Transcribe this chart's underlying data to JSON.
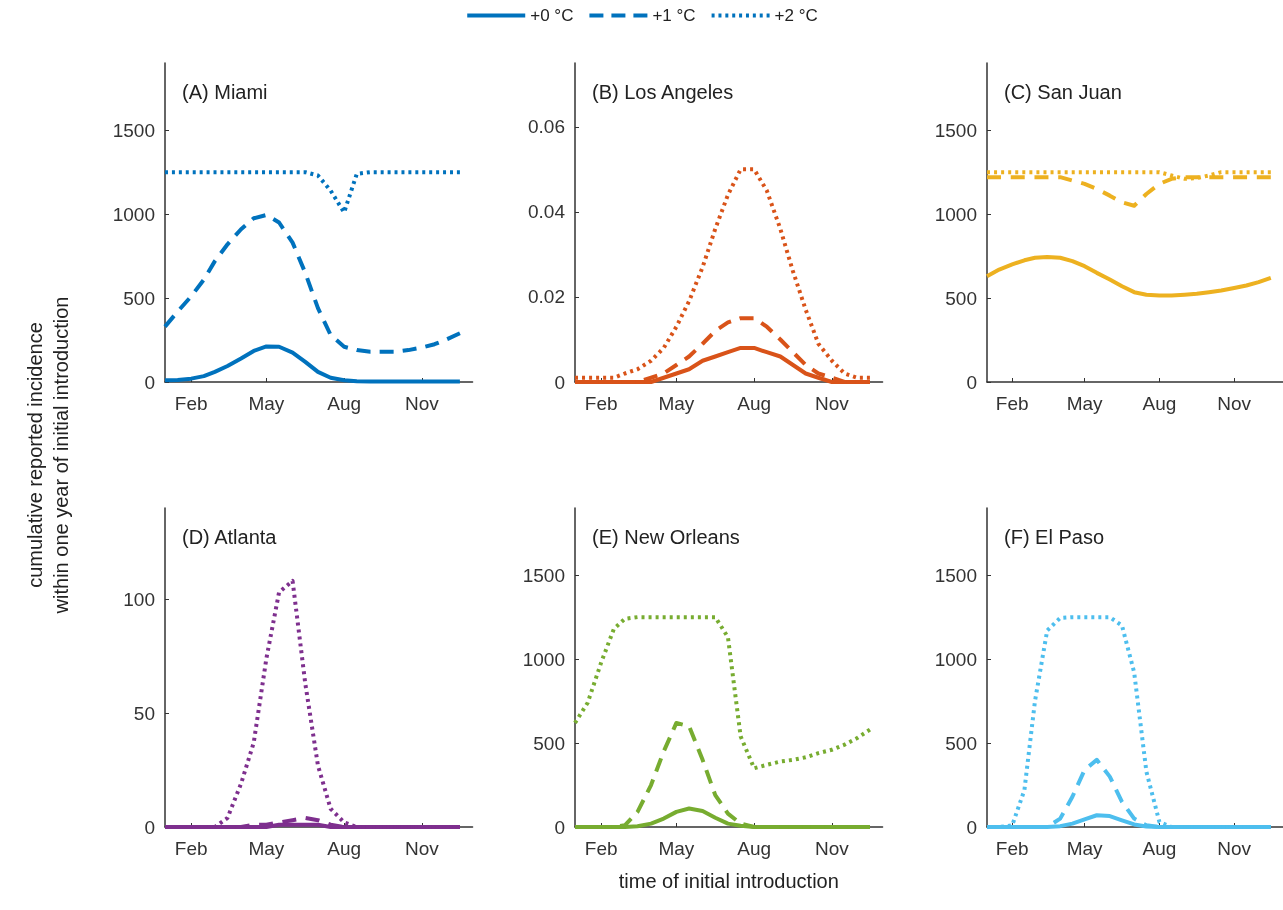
{
  "chart_data": [
    {
      "type": "line",
      "title": "(A) Miami",
      "ylabel": "cumulative reported incidence\nwithin one year of initial introduction",
      "legend": "top",
      "marker": "none",
      "grid": false,
      "x": [
        "--01-01",
        "--01-16",
        "--02-01",
        "--02-16",
        "--03-01",
        "--03-16",
        "--04-01",
        "--04-16",
        "--05-01",
        "--05-16",
        "--06-01",
        "--06-16",
        "--07-01",
        "--07-16",
        "--08-01",
        "--08-16",
        "--09-01",
        "--09-16",
        "--10-01",
        "--10-16",
        "--11-01",
        "--11-16",
        "--12-01",
        "--12-16"
      ],
      "xlim": [
        "--01-01",
        "--12-31"
      ],
      "xticks": [
        {
          "value": "--02-01",
          "label": "Feb"
        },
        {
          "value": "--05-01",
          "label": "May"
        },
        {
          "value": "--08-01",
          "label": "Aug"
        },
        {
          "value": "--11-01",
          "label": "Nov"
        }
      ],
      "ylim": [
        0,
        1900
      ],
      "yticks": [
        0,
        500,
        1000,
        1500
      ],
      "series": [
        {
          "name": "+0 °C",
          "color": "#0072bd",
          "line_style": "solid",
          "values": [
            10,
            12,
            20,
            35,
            60,
            95,
            140,
            185,
            212,
            210,
            175,
            120,
            60,
            25,
            10,
            5,
            3,
            3,
            3,
            3,
            3,
            3,
            3,
            3
          ]
        },
        {
          "name": "+1 °C",
          "color": "#0072bd",
          "line_style": "dashed",
          "values": [
            330,
            420,
            510,
            610,
            720,
            820,
            910,
            975,
            995,
            950,
            830,
            650,
            440,
            280,
            210,
            190,
            180,
            180,
            180,
            190,
            205,
            225,
            255,
            290
          ]
        },
        {
          "name": "+2 °C",
          "color": "#0072bd",
          "line_style": "dotted",
          "values": [
            1250,
            1250,
            1250,
            1250,
            1250,
            1250,
            1250,
            1250,
            1250,
            1250,
            1250,
            1250,
            1230,
            1140,
            1010,
            1240,
            1250,
            1250,
            1250,
            1250,
            1250,
            1250,
            1250,
            1250
          ]
        }
      ]
    },
    {
      "type": "line",
      "title": "(B) Los Angeles",
      "marker": "none",
      "grid": false,
      "x": [
        "--01-01",
        "--01-16",
        "--02-01",
        "--02-16",
        "--03-01",
        "--03-16",
        "--04-01",
        "--04-16",
        "--05-01",
        "--05-16",
        "--06-01",
        "--06-16",
        "--07-01",
        "--07-16",
        "--08-01",
        "--08-16",
        "--09-01",
        "--09-16",
        "--10-01",
        "--10-16",
        "--11-01",
        "--11-16",
        "--12-01",
        "--12-16"
      ],
      "xlim": [
        "--01-01",
        "--12-31"
      ],
      "xticks": [
        {
          "value": "--02-01",
          "label": "Feb"
        },
        {
          "value": "--05-01",
          "label": "May"
        },
        {
          "value": "--08-01",
          "label": "Aug"
        },
        {
          "value": "--11-01",
          "label": "Nov"
        }
      ],
      "ylim": [
        0,
        0.075
      ],
      "yticks": [
        0,
        0.02,
        0.04,
        0.06
      ],
      "series": [
        {
          "color": "#d95319",
          "line_style": "solid",
          "values": [
            0,
            0,
            0,
            0,
            0,
            0,
            0,
            0.001,
            0.002,
            0.003,
            0.005,
            0.006,
            0.007,
            0.008,
            0.008,
            0.007,
            0.006,
            0.004,
            0.002,
            0.001,
            0,
            0,
            0,
            0
          ]
        },
        {
          "color": "#d95319",
          "line_style": "dashed",
          "values": [
            0,
            0,
            0,
            0,
            0,
            0,
            0.001,
            0.002,
            0.004,
            0.006,
            0.009,
            0.012,
            0.014,
            0.015,
            0.015,
            0.013,
            0.01,
            0.007,
            0.004,
            0.002,
            0.001,
            0,
            0,
            0
          ]
        },
        {
          "color": "#d95319",
          "line_style": "dotted",
          "values": [
            0.001,
            0.001,
            0.001,
            0.001,
            0.002,
            0.003,
            0.005,
            0.008,
            0.013,
            0.019,
            0.027,
            0.036,
            0.044,
            0.05,
            0.05,
            0.045,
            0.036,
            0.026,
            0.017,
            0.009,
            0.005,
            0.002,
            0.001,
            0.001
          ]
        }
      ]
    },
    {
      "type": "line",
      "title": "(C) San Juan",
      "marker": "none",
      "grid": false,
      "x": [
        "--01-01",
        "--01-16",
        "--02-01",
        "--02-16",
        "--03-01",
        "--03-16",
        "--04-01",
        "--04-16",
        "--05-01",
        "--05-16",
        "--06-01",
        "--06-16",
        "--07-01",
        "--07-16",
        "--08-01",
        "--08-16",
        "--09-01",
        "--09-16",
        "--10-01",
        "--10-16",
        "--11-01",
        "--11-16",
        "--12-01",
        "--12-16"
      ],
      "xlim": [
        "--01-01",
        "--12-31"
      ],
      "xticks": [
        {
          "value": "--02-01",
          "label": "Feb"
        },
        {
          "value": "--05-01",
          "label": "May"
        },
        {
          "value": "--08-01",
          "label": "Aug"
        },
        {
          "value": "--11-01",
          "label": "Nov"
        }
      ],
      "ylim": [
        0,
        1900
      ],
      "yticks": [
        0,
        500,
        1000,
        1500
      ],
      "series": [
        {
          "color": "#edb120",
          "line_style": "solid",
          "values": [
            630,
            670,
            700,
            725,
            740,
            745,
            740,
            720,
            690,
            650,
            610,
            570,
            535,
            520,
            515,
            515,
            520,
            525,
            535,
            545,
            560,
            575,
            595,
            620
          ]
        },
        {
          "color": "#edb120",
          "line_style": "dashed",
          "values": [
            1220,
            1220,
            1220,
            1220,
            1220,
            1220,
            1220,
            1200,
            1180,
            1150,
            1110,
            1070,
            1050,
            1120,
            1180,
            1210,
            1220,
            1220,
            1220,
            1220,
            1220,
            1220,
            1220,
            1220
          ]
        },
        {
          "color": "#edb120",
          "line_style": "dotted",
          "values": [
            1250,
            1250,
            1250,
            1250,
            1250,
            1250,
            1250,
            1250,
            1250,
            1250,
            1250,
            1250,
            1250,
            1250,
            1250,
            1230,
            1210,
            1215,
            1230,
            1250,
            1250,
            1250,
            1250,
            1250
          ]
        }
      ]
    },
    {
      "type": "line",
      "title": "(D) Atlanta",
      "marker": "none",
      "grid": false,
      "x": [
        "--01-01",
        "--01-16",
        "--02-01",
        "--02-16",
        "--03-01",
        "--03-16",
        "--04-01",
        "--04-16",
        "--05-01",
        "--05-16",
        "--06-01",
        "--06-16",
        "--07-01",
        "--07-16",
        "--08-01",
        "--08-16",
        "--09-01",
        "--09-16",
        "--10-01",
        "--10-16",
        "--11-01",
        "--11-16",
        "--12-01",
        "--12-16"
      ],
      "xlim": [
        "--01-01",
        "--12-31"
      ],
      "xticks": [
        {
          "value": "--02-01",
          "label": "Feb"
        },
        {
          "value": "--05-01",
          "label": "May"
        },
        {
          "value": "--08-01",
          "label": "Aug"
        },
        {
          "value": "--11-01",
          "label": "Nov"
        }
      ],
      "ylim": [
        0,
        140
      ],
      "yticks": [
        0,
        50,
        100
      ],
      "series": [
        {
          "color": "#7e2f8e",
          "line_style": "solid",
          "values": [
            0,
            0,
            0,
            0,
            0,
            0,
            0,
            0,
            0,
            1,
            1,
            1,
            1,
            0,
            0,
            0,
            0,
            0,
            0,
            0,
            0,
            0,
            0,
            0
          ]
        },
        {
          "color": "#7e2f8e",
          "line_style": "dashed",
          "values": [
            0,
            0,
            0,
            0,
            0,
            0,
            0,
            1,
            1,
            2,
            3,
            4,
            3,
            1,
            0,
            0,
            0,
            0,
            0,
            0,
            0,
            0,
            0,
            0
          ]
        },
        {
          "color": "#7e2f8e",
          "line_style": "dotted",
          "values": [
            0,
            0,
            0,
            0,
            0,
            4,
            19,
            37,
            74,
            103,
            108,
            63,
            27,
            8,
            2,
            0,
            0,
            0,
            0,
            0,
            0,
            0,
            0,
            0
          ]
        }
      ]
    },
    {
      "type": "line",
      "title": "(E) New Orleans",
      "xlabel": "time of initial introduction",
      "marker": "none",
      "grid": false,
      "x": [
        "--01-01",
        "--01-16",
        "--02-01",
        "--02-16",
        "--03-01",
        "--03-16",
        "--04-01",
        "--04-16",
        "--05-01",
        "--05-16",
        "--06-01",
        "--06-16",
        "--07-01",
        "--07-16",
        "--08-01",
        "--08-16",
        "--09-01",
        "--09-16",
        "--10-01",
        "--10-16",
        "--11-01",
        "--11-16",
        "--12-01",
        "--12-16"
      ],
      "xlim": [
        "--01-01",
        "--12-31"
      ],
      "xticks": [
        {
          "value": "--02-01",
          "label": "Feb"
        },
        {
          "value": "--05-01",
          "label": "May"
        },
        {
          "value": "--08-01",
          "label": "Aug"
        },
        {
          "value": "--11-01",
          "label": "Nov"
        }
      ],
      "ylim": [
        0,
        1900
      ],
      "yticks": [
        0,
        500,
        1000,
        1500
      ],
      "series": [
        {
          "color": "#77ac30",
          "line_style": "solid",
          "values": [
            0,
            0,
            0,
            0,
            0,
            5,
            20,
            50,
            90,
            110,
            95,
            55,
            20,
            8,
            0,
            0,
            0,
            0,
            0,
            0,
            0,
            0,
            0,
            0
          ]
        },
        {
          "color": "#77ac30",
          "line_style": "dashed",
          "values": [
            0,
            0,
            0,
            0,
            10,
            90,
            250,
            450,
            620,
            600,
            400,
            190,
            80,
            20,
            0,
            0,
            0,
            0,
            0,
            0,
            0,
            0,
            0,
            0
          ]
        },
        {
          "color": "#77ac30",
          "line_style": "dotted",
          "values": [
            620,
            740,
            980,
            1180,
            1240,
            1250,
            1250,
            1250,
            1250,
            1250,
            1250,
            1250,
            1130,
            540,
            350,
            370,
            390,
            400,
            415,
            440,
            460,
            490,
            530,
            580
          ]
        }
      ]
    },
    {
      "type": "line",
      "title": "(F) El Paso",
      "marker": "none",
      "grid": false,
      "x": [
        "--01-01",
        "--01-16",
        "--02-01",
        "--02-16",
        "--03-01",
        "--03-16",
        "--04-01",
        "--04-16",
        "--05-01",
        "--05-16",
        "--06-01",
        "--06-16",
        "--07-01",
        "--07-16",
        "--08-01",
        "--08-16",
        "--09-01",
        "--09-16",
        "--10-01",
        "--10-16",
        "--11-01",
        "--11-16",
        "--12-01",
        "--12-16"
      ],
      "xlim": [
        "--01-01",
        "--12-31"
      ],
      "xticks": [
        {
          "value": "--02-01",
          "label": "Feb"
        },
        {
          "value": "--05-01",
          "label": "May"
        },
        {
          "value": "--08-01",
          "label": "Aug"
        },
        {
          "value": "--11-01",
          "label": "Nov"
        }
      ],
      "ylim": [
        0,
        1900
      ],
      "yticks": [
        0,
        500,
        1000,
        1500
      ],
      "series": [
        {
          "color": "#4dbeee",
          "line_style": "solid",
          "values": [
            0,
            0,
            0,
            0,
            0,
            0,
            5,
            20,
            45,
            70,
            65,
            40,
            15,
            3,
            0,
            0,
            0,
            0,
            0,
            0,
            0,
            0,
            0,
            0
          ]
        },
        {
          "color": "#4dbeee",
          "line_style": "dashed",
          "values": [
            0,
            0,
            0,
            0,
            0,
            0,
            50,
            180,
            340,
            400,
            300,
            150,
            50,
            10,
            0,
            0,
            0,
            0,
            0,
            0,
            0,
            0,
            0,
            0
          ]
        },
        {
          "color": "#4dbeee",
          "line_style": "dotted",
          "values": [
            0,
            0,
            10,
            220,
            750,
            1170,
            1245,
            1250,
            1250,
            1250,
            1250,
            1200,
            920,
            330,
            30,
            0,
            0,
            0,
            0,
            0,
            0,
            0,
            0,
            0
          ]
        }
      ]
    }
  ]
}
